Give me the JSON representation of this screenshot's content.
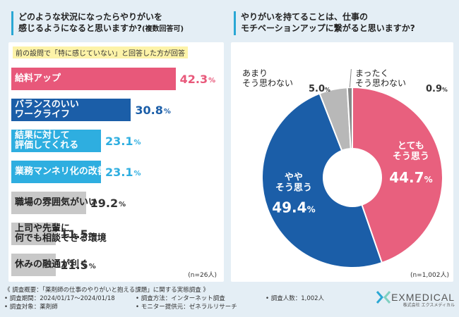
{
  "left": {
    "question": "どのような状況になったらやりがいを",
    "question_line2": "感じるようになると思いますか?",
    "question_suffix": "(複数回答可)",
    "note": "前の設問で「特に感じていない」と回答した方が回答",
    "n_label": "(n=26人)"
  },
  "right": {
    "question": "やりがいを持てることは、仕事の",
    "question_line2": "モチベーションアップに繋がると思いますか?",
    "n_label": "(n=1,002人)"
  },
  "footer": {
    "survey": "《 調査概要：「薬剤師の仕事のやりがいと抱える課題」に関する実態調査 》",
    "period": "• 調査期間：2024/01/17～2024/01/18",
    "method": "• 調査方法：インターネット調査",
    "count": "• 調査人数：1,002人",
    "target": "• 調査対象：薬剤師",
    "monitor": "• モニター提供元：ゼネラルリサーチ"
  },
  "logo": {
    "name": "EXMEDICAL",
    "sub": "株式会社 エクスメディカル"
  },
  "chart_data": [
    {
      "type": "bar",
      "title": "どのような状況になったらやりがいを感じるようになると思いますか?(複数回答可)",
      "categories": [
        "給料アップ",
        "バランスのいい\nワークライフ",
        "結果に対して\n評価してくれる",
        "業務マンネリ化の改善",
        "職場の雰囲気がいい",
        "上司や先輩に\n何でも相談できる環境",
        "休みの融通が利く"
      ],
      "values": [
        42.3,
        30.8,
        23.1,
        23.1,
        19.2,
        11.5,
        11.5
      ],
      "value_labels": [
        "42.3",
        "30.8",
        "23.1",
        "23.1",
        "19.2",
        "11.5",
        "11.5"
      ],
      "unit": "%",
      "colors": [
        "#e8587a",
        "#1b5ea8",
        "#2eaee0",
        "#2eaee0",
        "#c8c8c8",
        "#c8c8c8",
        "#c8c8c8"
      ],
      "xlim": [
        0,
        50
      ]
    },
    {
      "type": "pie",
      "title": "やりがいを持てることは、仕事のモチベーションアップに繋がると思いますか?",
      "labels": [
        "とても\nそう思う",
        "やや\nそう思う",
        "あまり\nそう思わない",
        "まったく\nそう思わない"
      ],
      "values": [
        44.7,
        49.4,
        5.0,
        0.9
      ],
      "value_labels": [
        "44.7",
        "49.4",
        "5.0",
        "0.9"
      ],
      "unit": "%",
      "colors": [
        "#e8607e",
        "#1b5ea8",
        "#b8b8b8",
        "#888888"
      ]
    }
  ]
}
